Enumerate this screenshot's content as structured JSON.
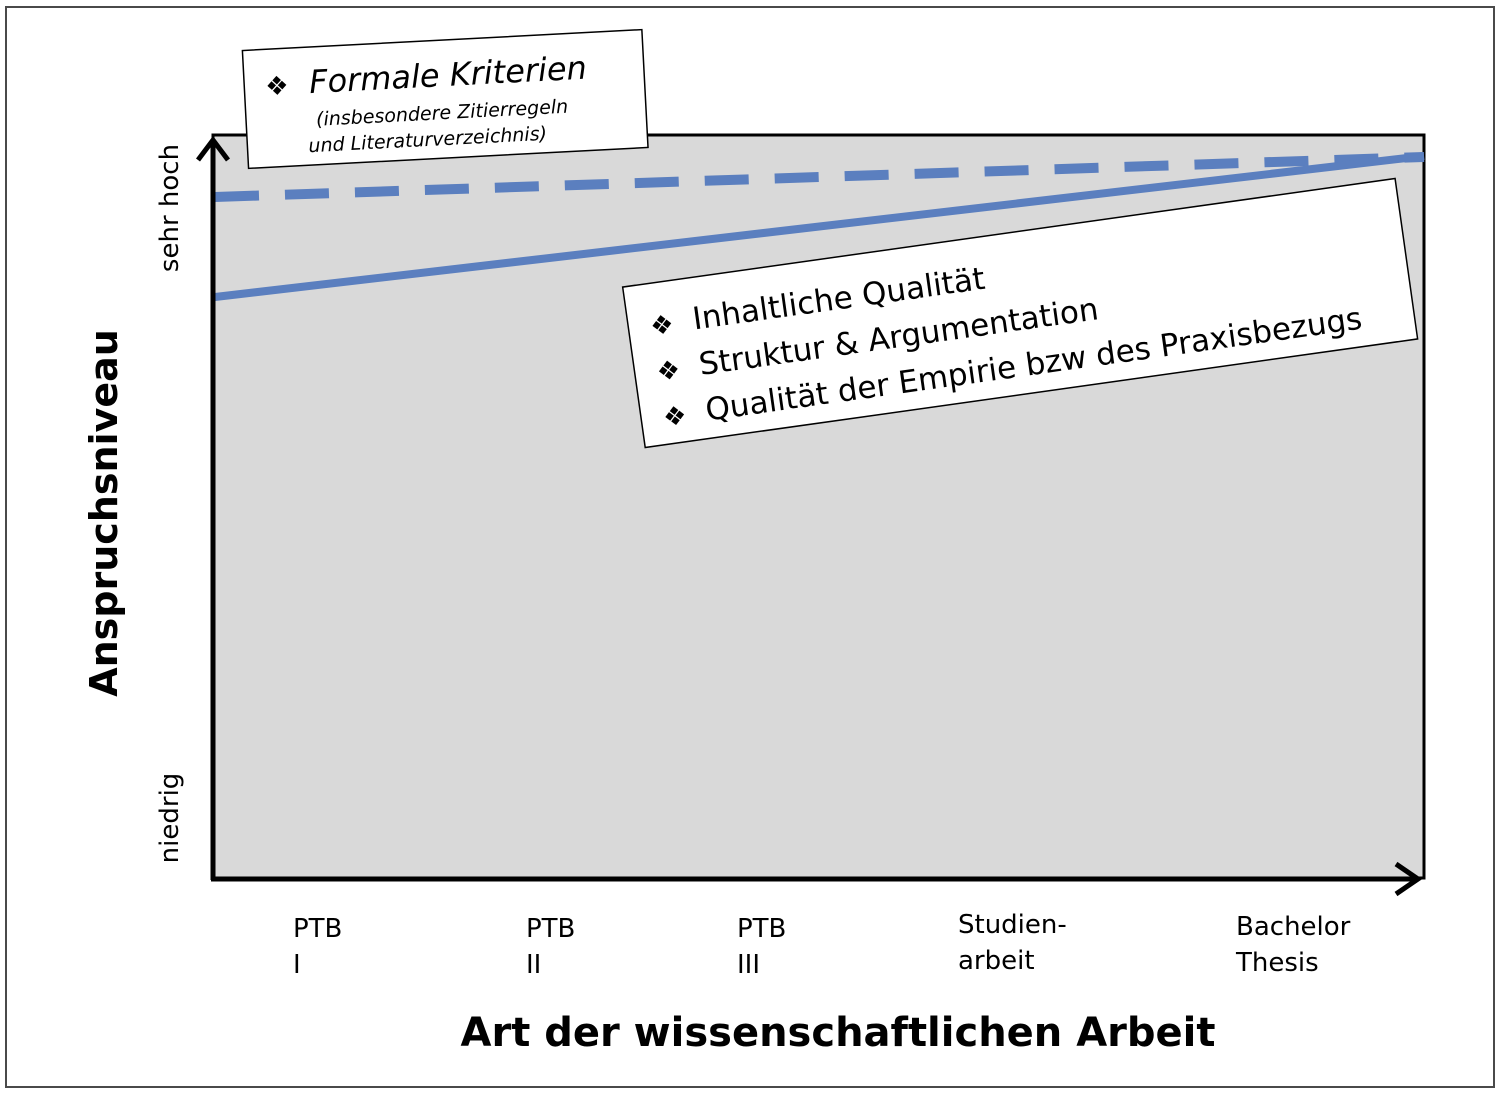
{
  "y_axis": {
    "title": "Anspruchsniveau",
    "high_label": "sehr hoch",
    "low_label": "niedrig"
  },
  "x_axis": {
    "title": "Art der wissenschaftlichen Arbeit",
    "categories": [
      [
        "PTB",
        "I"
      ],
      [
        "PTB",
        "II"
      ],
      [
        "PTB",
        "III"
      ],
      [
        "Studien-",
        "arbeit"
      ],
      [
        "Bachelor",
        "Thesis"
      ]
    ]
  },
  "callout_formal": {
    "bullet": "❖",
    "title": "Formale Kriterien",
    "sub_line1": "(insbesondere Zitierregeln",
    "sub_line2": "und Literaturverzeichnis)"
  },
  "callout_content": {
    "bullet": "❖",
    "items": [
      "Inhaltliche Qualität",
      "Struktur & Argumentation",
      "Qualität der Empirie bzw des Praxisbezugs"
    ]
  },
  "colors": {
    "line": "#5b7fbf",
    "plot_bg": "#d9d9d9",
    "axis": "#000000"
  }
}
